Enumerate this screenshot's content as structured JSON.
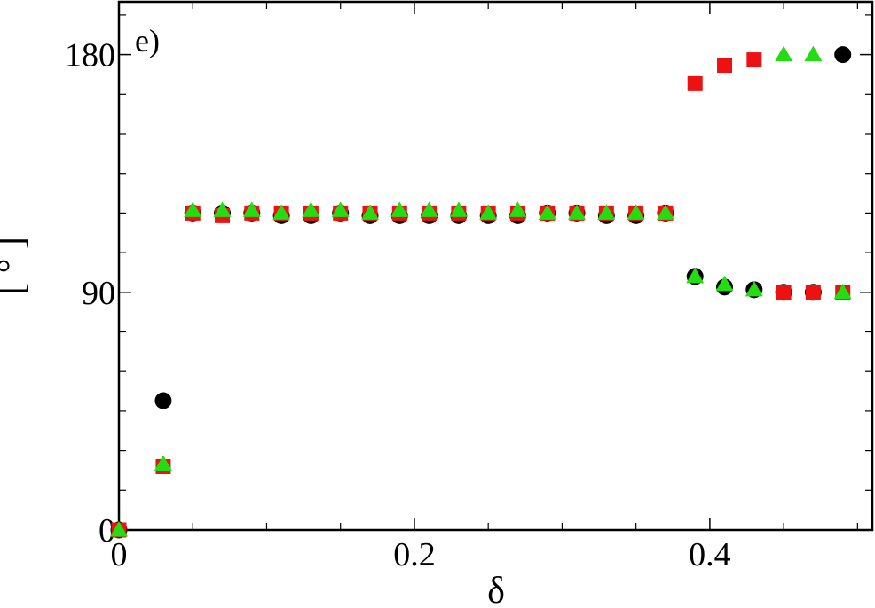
{
  "chart_data": {
    "type": "scatter",
    "panel_label": "e)",
    "xlabel": "δ",
    "ylabel": "[ ° ]",
    "xlim": [
      0,
      0.51
    ],
    "ylim": [
      0,
      200
    ],
    "xticks": [
      0,
      0.2,
      0.4
    ],
    "xtick_labels": [
      "0",
      "0.2",
      "0.4"
    ],
    "yticks": [
      0,
      90,
      180
    ],
    "ytick_labels": [
      "0",
      "90",
      "180"
    ],
    "grid": false,
    "legend": "none",
    "series": [
      {
        "marker": "circle",
        "color": "#000000",
        "points": [
          [
            0.0,
            0
          ],
          [
            0.03,
            49
          ],
          [
            0.05,
            120
          ],
          [
            0.07,
            120
          ],
          [
            0.09,
            120
          ],
          [
            0.11,
            119
          ],
          [
            0.13,
            119
          ],
          [
            0.15,
            120
          ],
          [
            0.17,
            119
          ],
          [
            0.19,
            119
          ],
          [
            0.21,
            119
          ],
          [
            0.23,
            119
          ],
          [
            0.25,
            119
          ],
          [
            0.27,
            119
          ],
          [
            0.29,
            120
          ],
          [
            0.31,
            120
          ],
          [
            0.33,
            119
          ],
          [
            0.35,
            119
          ],
          [
            0.37,
            120
          ],
          [
            0.39,
            96
          ],
          [
            0.41,
            92
          ],
          [
            0.43,
            91
          ],
          [
            0.45,
            90
          ],
          [
            0.47,
            90
          ],
          [
            0.49,
            180
          ]
        ]
      },
      {
        "marker": "square",
        "color": "#ee1111",
        "points": [
          [
            0.0,
            0
          ],
          [
            0.03,
            24
          ],
          [
            0.05,
            120
          ],
          [
            0.07,
            119
          ],
          [
            0.09,
            120
          ],
          [
            0.11,
            120
          ],
          [
            0.13,
            120
          ],
          [
            0.15,
            120
          ],
          [
            0.17,
            120
          ],
          [
            0.19,
            120
          ],
          [
            0.21,
            120
          ],
          [
            0.23,
            120
          ],
          [
            0.25,
            120
          ],
          [
            0.27,
            120
          ],
          [
            0.29,
            120
          ],
          [
            0.31,
            120
          ],
          [
            0.33,
            120
          ],
          [
            0.35,
            120
          ],
          [
            0.37,
            120
          ],
          [
            0.39,
            169
          ],
          [
            0.41,
            176
          ],
          [
            0.43,
            178
          ],
          [
            0.45,
            90
          ],
          [
            0.47,
            90
          ],
          [
            0.49,
            90
          ]
        ]
      },
      {
        "marker": "triangle",
        "color": "#22dd11",
        "points": [
          [
            0.0,
            0
          ],
          [
            0.03,
            25
          ],
          [
            0.05,
            121
          ],
          [
            0.07,
            121
          ],
          [
            0.09,
            121
          ],
          [
            0.11,
            120
          ],
          [
            0.13,
            121
          ],
          [
            0.15,
            121
          ],
          [
            0.17,
            120
          ],
          [
            0.19,
            121
          ],
          [
            0.21,
            121
          ],
          [
            0.23,
            121
          ],
          [
            0.25,
            120
          ],
          [
            0.27,
            121
          ],
          [
            0.29,
            120
          ],
          [
            0.31,
            120
          ],
          [
            0.33,
            120
          ],
          [
            0.35,
            120
          ],
          [
            0.37,
            120
          ],
          [
            0.39,
            96
          ],
          [
            0.41,
            93
          ],
          [
            0.43,
            91
          ],
          [
            0.45,
            180
          ],
          [
            0.47,
            180
          ],
          [
            0.49,
            90
          ]
        ]
      }
    ]
  }
}
